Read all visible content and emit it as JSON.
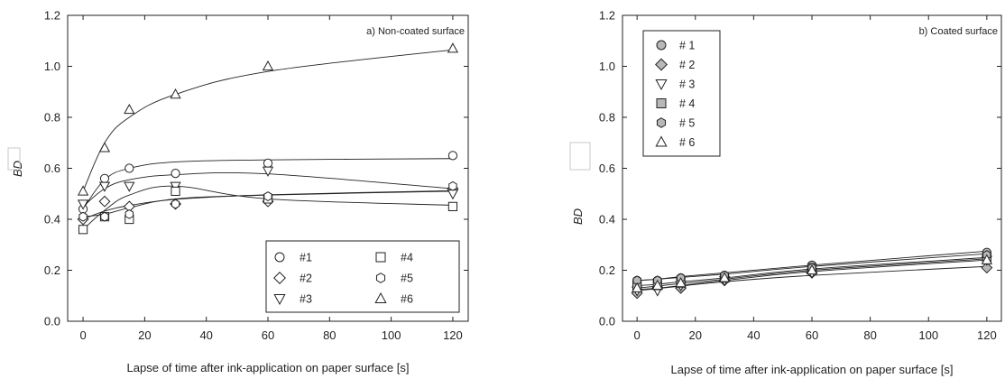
{
  "chart_data": [
    {
      "type": "scatter",
      "title": "",
      "annotation": "a) Non-coated surface",
      "xlabel": "Lapse of time after ink-application on paper surface [s]",
      "ylabel": "BD",
      "xlim": [
        -5,
        125
      ],
      "ylim": [
        0.0,
        1.2
      ],
      "xticks": [
        0,
        20,
        40,
        60,
        80,
        100,
        120
      ],
      "yticks": [
        0.0,
        0.2,
        0.4,
        0.6,
        0.8,
        1.0,
        1.2
      ],
      "ytick_labels": [
        "0.0",
        "0.2",
        "0.4",
        "0.6",
        "0.8",
        "1.0",
        "1.2"
      ],
      "grid": false,
      "legend_position": "bottom-right",
      "legend_columns": 2,
      "x": [
        0,
        7,
        15,
        30,
        60,
        120
      ],
      "series": [
        {
          "name": "#1",
          "marker": "circle",
          "fill": "#ffffff",
          "values": [
            0.44,
            0.56,
            0.6,
            0.58,
            0.62,
            0.65
          ],
          "fit": [
            0.44,
            0.555,
            0.6,
            0.625,
            0.633,
            0.638
          ]
        },
        {
          "name": "#2",
          "marker": "diamond",
          "fill": "#ffffff",
          "values": [
            0.4,
            0.47,
            0.45,
            0.46,
            0.47,
            0.52
          ],
          "fit": [
            0.4,
            0.432,
            0.454,
            0.478,
            0.496,
            0.512
          ]
        },
        {
          "name": "#3",
          "marker": "triangle-down",
          "fill": "#ffffff",
          "values": [
            0.46,
            0.53,
            0.53,
            0.53,
            0.59,
            0.5
          ],
          "fit": [
            0.45,
            0.52,
            0.555,
            0.575,
            0.578,
            0.52
          ]
        },
        {
          "name": "#4",
          "marker": "square",
          "fill": "#ffffff",
          "values": [
            0.36,
            0.41,
            0.4,
            0.51,
            0.48,
            0.45
          ],
          "fit": [
            0.36,
            0.435,
            0.495,
            0.53,
            0.48,
            0.455
          ]
        },
        {
          "name": "#5",
          "marker": "hexagon",
          "fill": "#ffffff",
          "values": [
            0.41,
            0.41,
            0.42,
            0.46,
            0.49,
            0.53
          ],
          "fit": [
            0.41,
            0.42,
            0.445,
            0.48,
            0.495,
            0.51
          ]
        },
        {
          "name": "#6",
          "marker": "triangle-up",
          "fill": "#ffffff",
          "values": [
            0.51,
            0.68,
            0.83,
            0.89,
            1.0,
            1.07
          ],
          "fit": [
            0.51,
            0.7,
            0.8,
            0.89,
            0.98,
            1.065
          ]
        }
      ]
    },
    {
      "type": "scatter",
      "title": "",
      "annotation": "b) Coated surface",
      "xlabel": "Lapse of time after ink-application on paper surface [s]",
      "ylabel": "BD",
      "xlim": [
        -5,
        125
      ],
      "ylim": [
        0.0,
        1.2
      ],
      "xticks": [
        0,
        20,
        40,
        60,
        80,
        100,
        120
      ],
      "yticks": [
        0.0,
        0.2,
        0.4,
        0.6,
        0.8,
        1.0,
        1.2
      ],
      "ytick_labels": [
        "0.0",
        "0.2",
        "0.4",
        "0.6",
        "0.8",
        "1.0",
        "1.2"
      ],
      "grid": false,
      "legend_position": "top-left",
      "legend_columns": 1,
      "x": [
        0,
        7,
        15,
        30,
        60,
        120
      ],
      "series": [
        {
          "name": "# 1",
          "marker": "circle",
          "fill": "#b8b8b8",
          "values": [
            0.16,
            0.16,
            0.17,
            0.18,
            0.22,
            0.27
          ],
          "fit": [
            0.16,
            0.165,
            0.175,
            0.19,
            0.22,
            0.275
          ]
        },
        {
          "name": "# 2",
          "marker": "diamond",
          "fill": "#b8b8b8",
          "values": [
            0.11,
            0.13,
            0.13,
            0.16,
            0.19,
            0.21
          ],
          "fit": [
            0.12,
            0.128,
            0.138,
            0.155,
            0.18,
            0.215
          ]
        },
        {
          "name": "# 3",
          "marker": "triangle-down",
          "fill": "#ffffff",
          "values": [
            0.12,
            0.12,
            0.14,
            0.16,
            0.19,
            0.24
          ],
          "fit": [
            0.125,
            0.13,
            0.14,
            0.16,
            0.195,
            0.24
          ]
        },
        {
          "name": "# 4",
          "marker": "square",
          "fill": "#b8b8b8",
          "values": [
            0.14,
            0.14,
            0.15,
            0.17,
            0.21,
            0.25
          ],
          "fit": [
            0.14,
            0.145,
            0.155,
            0.17,
            0.205,
            0.25
          ]
        },
        {
          "name": "# 5",
          "marker": "hexagon",
          "fill": "#b8b8b8",
          "values": [
            0.16,
            0.16,
            0.17,
            0.18,
            0.21,
            0.26
          ],
          "fit": [
            0.16,
            0.165,
            0.172,
            0.185,
            0.215,
            0.265
          ]
        },
        {
          "name": "# 6",
          "marker": "triangle-up",
          "fill": "#ffffff",
          "values": [
            0.13,
            0.14,
            0.15,
            0.17,
            0.2,
            0.24
          ],
          "fit": [
            0.13,
            0.138,
            0.148,
            0.165,
            0.2,
            0.245
          ]
        }
      ]
    }
  ]
}
